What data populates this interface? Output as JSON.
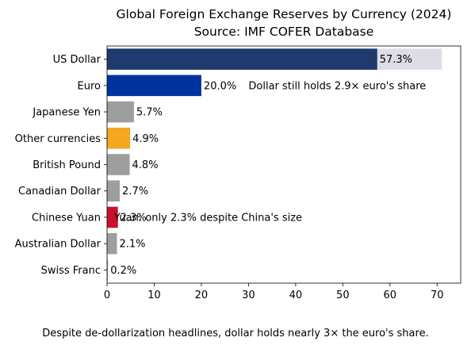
{
  "chart_data": {
    "type": "bar",
    "orientation": "horizontal",
    "title": "Global Foreign Exchange Reserves by Currency (2024)",
    "subtitle": "Source: IMF COFER Database",
    "xlabel": "",
    "ylabel": "",
    "xlim": [
      0,
      75
    ],
    "xticks": [
      0,
      10,
      20,
      30,
      40,
      50,
      60,
      70
    ],
    "grid": false,
    "categories": [
      "US Dollar",
      "Euro",
      "Japanese Yen",
      "Other currencies",
      "British Pound",
      "Canadian Dollar",
      "Chinese Yuan",
      "Australian Dollar",
      "Swiss Franc"
    ],
    "values": [
      57.3,
      20.0,
      5.7,
      4.9,
      4.8,
      2.7,
      2.3,
      2.1,
      0.2
    ],
    "value_labels": [
      "57.3%",
      "20.0%",
      "5.7%",
      "4.9%",
      "4.8%",
      "2.7%",
      "2.3%",
      "2.1%",
      "0.2%"
    ],
    "colors": [
      "#1f3a6e",
      "#0033a0",
      "#9e9e9e",
      "#f5a623",
      "#9e9e9e",
      "#9e9e9e",
      "#c8102e",
      "#9e9e9e",
      "#9e9e9e"
    ],
    "background_bar": {
      "category": "US Dollar",
      "value": 71,
      "color": "#dcdde6"
    },
    "annotations": [
      {
        "text": "Dollar still holds 2.9× euro's share",
        "x": 30,
        "category": "Euro"
      },
      {
        "text": "Yuan: only 2.3% despite China's size",
        "x": 1.5,
        "category": "Chinese Yuan"
      }
    ]
  },
  "caption": "Despite de-dollarization headlines, dollar holds nearly 3× the euro's share."
}
